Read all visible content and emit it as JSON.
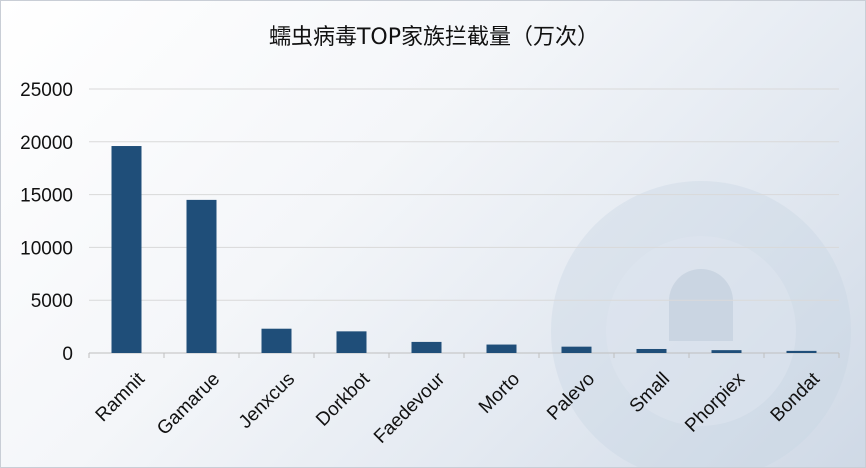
{
  "chart_data": {
    "type": "bar",
    "title": "蠕虫病毒TOP家族拦截量（万次）",
    "xlabel": "",
    "ylabel": "",
    "categories": [
      "Ramnit",
      "Gamarue",
      "Jenxcus",
      "Dorkbot",
      "Faedevour",
      "Morto",
      "Palevo",
      "Small",
      "Phorpiex",
      "Bondat"
    ],
    "values": [
      19600,
      14500,
      2300,
      2050,
      1050,
      800,
      600,
      380,
      270,
      200
    ],
    "ylim": [
      0,
      25000
    ],
    "yticks": [
      "0",
      "5000",
      "10000",
      "15000",
      "20000",
      "25000"
    ],
    "grid": true,
    "legend": "none",
    "bar_color": "#1f4e79",
    "grid_color": "#d9d9d9"
  }
}
